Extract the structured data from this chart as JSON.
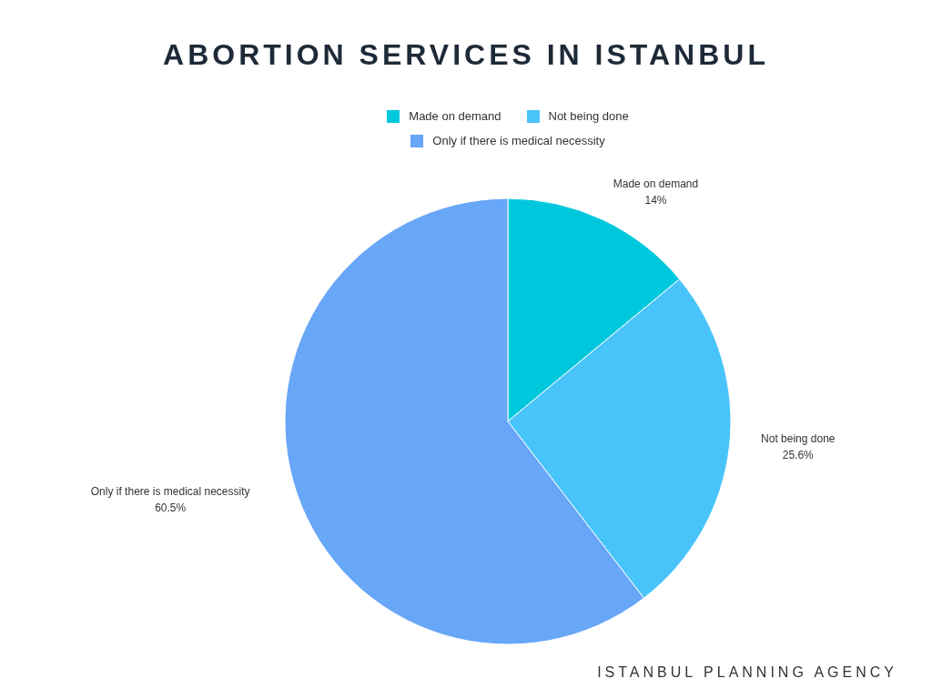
{
  "chart_data": {
    "type": "pie",
    "title": "ABORTION SERVICES IN ISTANBUL",
    "categories": [
      "Made on demand",
      "Not being done",
      "Only if there is medical necessity"
    ],
    "values": [
      14,
      25.6,
      60.5
    ],
    "value_labels": [
      "14%",
      "25.6%",
      "60.5%"
    ],
    "colors": [
      "#00c8dc",
      "#48c4fa",
      "#68a6f8"
    ],
    "legend": "top",
    "annotations": [
      "ISTANBUL PLANNING AGENCY"
    ]
  }
}
